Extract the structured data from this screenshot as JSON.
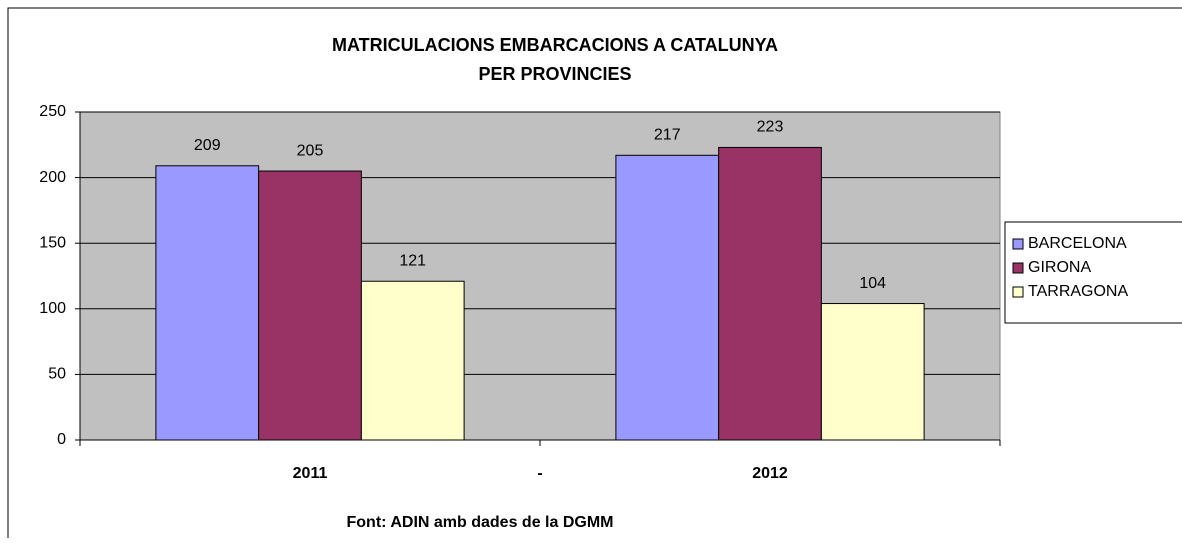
{
  "chart_data": {
    "type": "bar",
    "title": [
      "MATRICULACIONS EMBARCACIONS A CATALUNYA",
      "PER PROVINCIES"
    ],
    "categories": [
      "2011",
      "2012"
    ],
    "annotation": "-",
    "source": "Font: ADIN amb dades de la DGMM",
    "series": [
      {
        "name": "BARCELONA",
        "color": "#9999ff",
        "values": [
          209,
          217
        ]
      },
      {
        "name": "GIRONA",
        "color": "#993366",
        "values": [
          205,
          223
        ]
      },
      {
        "name": "TARRAGONA",
        "color": "#ffffcc",
        "values": [
          121,
          104
        ]
      }
    ],
    "ylim": [
      0,
      250
    ],
    "yticks": [
      0,
      50,
      100,
      150,
      200,
      250
    ],
    "grid": true,
    "legend": "right"
  }
}
